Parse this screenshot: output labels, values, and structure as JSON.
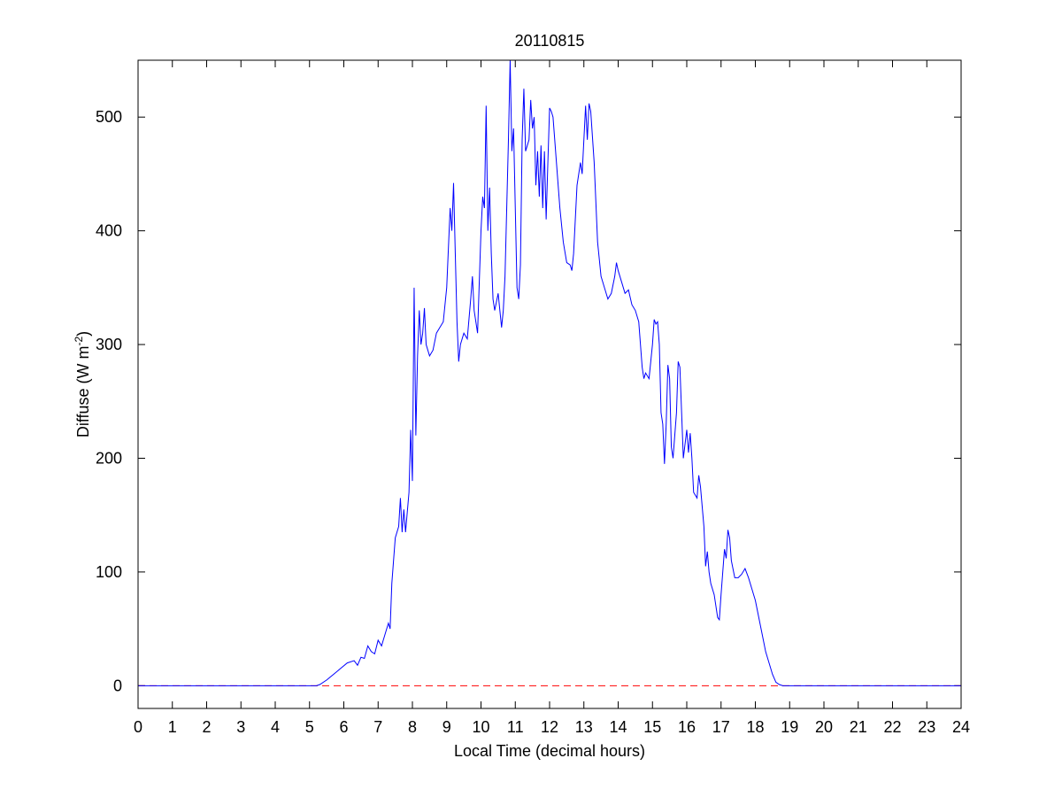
{
  "chart_data": {
    "type": "line",
    "title": "20110815",
    "xlabel": "Local Time (decimal hours)",
    "ylabel": {
      "text": "Diffuse (W m",
      "superscript": "-2",
      "suffix": ")"
    },
    "color": "#0000ff",
    "x": [
      0,
      5.2,
      5.3,
      5.5,
      5.7,
      5.9,
      6.1,
      6.3,
      6.4,
      6.5,
      6.6,
      6.7,
      6.8,
      6.9,
      7.0,
      7.1,
      7.2,
      7.3,
      7.35,
      7.4,
      7.5,
      7.6,
      7.65,
      7.7,
      7.75,
      7.8,
      7.9,
      7.95,
      8.0,
      8.05,
      8.1,
      8.15,
      8.2,
      8.25,
      8.3,
      8.35,
      8.4,
      8.5,
      8.6,
      8.7,
      8.8,
      8.9,
      9.0,
      9.1,
      9.15,
      9.2,
      9.25,
      9.3,
      9.35,
      9.4,
      9.5,
      9.6,
      9.7,
      9.75,
      9.8,
      9.9,
      10.0,
      10.05,
      10.1,
      10.15,
      10.2,
      10.25,
      10.3,
      10.35,
      10.4,
      10.5,
      10.6,
      10.65,
      10.7,
      10.8,
      10.85,
      10.9,
      10.95,
      11.0,
      11.05,
      11.1,
      11.15,
      11.2,
      11.25,
      11.3,
      11.4,
      11.45,
      11.5,
      11.55,
      11.6,
      11.65,
      11.7,
      11.75,
      11.8,
      11.85,
      11.9,
      11.95,
      12.0,
      12.05,
      12.1,
      12.2,
      12.3,
      12.4,
      12.5,
      12.6,
      12.65,
      12.7,
      12.8,
      12.9,
      12.95,
      13.0,
      13.05,
      13.1,
      13.15,
      13.2,
      13.3,
      13.4,
      13.5,
      13.6,
      13.7,
      13.8,
      13.9,
      13.95,
      14.0,
      14.1,
      14.2,
      14.3,
      14.4,
      14.5,
      14.6,
      14.7,
      14.75,
      14.8,
      14.9,
      15.0,
      15.05,
      15.1,
      15.15,
      15.2,
      15.25,
      15.3,
      15.35,
      15.4,
      15.45,
      15.5,
      15.55,
      15.6,
      15.7,
      15.75,
      15.8,
      15.85,
      15.9,
      16.0,
      16.05,
      16.1,
      16.15,
      16.2,
      16.3,
      16.35,
      16.4,
      16.5,
      16.55,
      16.6,
      16.65,
      16.7,
      16.8,
      16.9,
      16.95,
      17.0,
      17.05,
      17.1,
      17.15,
      17.2,
      17.25,
      17.3,
      17.4,
      17.5,
      17.6,
      17.7,
      17.8,
      17.9,
      18.0,
      18.1,
      18.2,
      18.3,
      18.4,
      18.5,
      18.6,
      18.7,
      18.8,
      18.9,
      24
    ],
    "values": [
      0,
      0,
      1,
      5,
      10,
      15,
      20,
      22,
      18,
      25,
      24,
      35,
      30,
      28,
      40,
      35,
      45,
      55,
      50,
      90,
      130,
      140,
      165,
      135,
      155,
      135,
      170,
      225,
      180,
      350,
      220,
      290,
      330,
      300,
      310,
      332,
      300,
      290,
      295,
      310,
      315,
      320,
      350,
      420,
      400,
      442,
      380,
      320,
      285,
      300,
      310,
      305,
      340,
      360,
      330,
      310,
      400,
      430,
      420,
      510,
      400,
      438,
      380,
      340,
      330,
      345,
      315,
      330,
      360,
      480,
      550,
      470,
      490,
      420,
      350,
      340,
      370,
      480,
      525,
      470,
      480,
      515,
      490,
      500,
      440,
      470,
      430,
      475,
      420,
      470,
      410,
      460,
      508,
      505,
      500,
      460,
      420,
      390,
      372,
      370,
      365,
      380,
      440,
      460,
      450,
      480,
      510,
      480,
      512,
      505,
      460,
      390,
      360,
      350,
      340,
      345,
      360,
      372,
      365,
      355,
      345,
      348,
      335,
      330,
      320,
      280,
      270,
      275,
      270,
      300,
      322,
      318,
      320,
      300,
      240,
      230,
      195,
      230,
      282,
      270,
      210,
      200,
      240,
      285,
      280,
      240,
      200,
      225,
      205,
      222,
      200,
      170,
      165,
      185,
      175,
      140,
      105,
      118,
      100,
      90,
      80,
      60,
      58,
      80,
      100,
      120,
      112,
      137,
      130,
      110,
      95,
      95,
      98,
      103,
      95,
      85,
      75,
      60,
      45,
      30,
      20,
      10,
      3,
      1,
      0,
      0,
      0
    ],
    "reference_line": {
      "value": 0,
      "color": "#ff0000",
      "style": "dashed"
    },
    "xlim": [
      0,
      24
    ],
    "xticks": [
      0,
      1,
      2,
      3,
      4,
      5,
      6,
      7,
      8,
      9,
      10,
      11,
      12,
      13,
      14,
      15,
      16,
      17,
      18,
      19,
      20,
      21,
      22,
      23,
      24
    ],
    "ylim": [
      -20,
      550
    ],
    "yticks": [
      0,
      100,
      200,
      300,
      400,
      500
    ]
  }
}
